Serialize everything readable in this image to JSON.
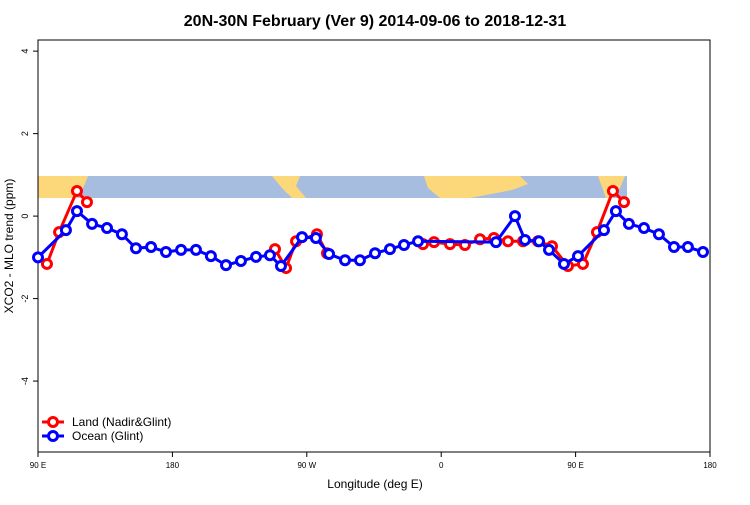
{
  "chart_data": {
    "type": "line",
    "title": "20N-30N February (Ver 9)   2014-09-06 to 2018-12-31",
    "x_label": "Longitude (deg E)",
    "y_label": "XCO2 - MLO trend (ppm)",
    "xlim": [
      90,
      540
    ],
    "ylim": [
      -5.72,
      4.27
    ],
    "xticks": [
      {
        "value": 90,
        "label": "90 E"
      },
      {
        "value": 180,
        "label": "180"
      },
      {
        "value": 270,
        "label": "90 W"
      },
      {
        "value": 360,
        "label": "0"
      },
      {
        "value": 450,
        "label": "90 E"
      },
      {
        "value": 540,
        "label": "180"
      }
    ],
    "yticks": [
      -4,
      -2,
      0,
      2,
      4
    ],
    "grid": false,
    "legend": "bottom-left",
    "series": [
      {
        "name": "Land (Nadir&Glint)",
        "color": "#ff0000",
        "x": [
          96.0,
          104.1,
          116.1,
          122.8,
          null,
          248.7,
          256.1,
          262.8,
          276.8,
          283.5,
          null,
          347.8,
          355.2,
          365.9,
          375.9,
          386.0,
          395.3,
          404.7,
          414.8,
          424.8,
          434.2,
          444.9,
          454.9,
          464.3,
          475.0,
          482.4
        ],
        "values": [
          -1.16,
          -0.39,
          0.61,
          0.34,
          null,
          -0.8,
          -1.26,
          -0.61,
          -0.44,
          -0.9,
          null,
          -0.68,
          -0.63,
          -0.68,
          -0.7,
          -0.56,
          -0.53,
          -0.61,
          -0.61,
          -0.61,
          -0.73,
          -1.21,
          -1.16,
          -0.39,
          0.61,
          0.34
        ]
      },
      {
        "name": "Ocean (Glint)",
        "color": "#0000ff",
        "x": [
          90.0,
          108.7,
          116.1,
          126.2,
          136.2,
          146.2,
          155.6,
          165.7,
          175.7,
          185.8,
          195.8,
          205.8,
          215.9,
          225.9,
          236.0,
          245.3,
          252.7,
          266.8,
          276.1,
          284.9,
          295.6,
          305.6,
          315.7,
          325.7,
          335.1,
          344.5,
          396.7,
          409.4,
          416.1,
          425.5,
          432.2,
          442.2,
          451.6,
          469.0,
          477.0,
          485.7,
          495.8,
          505.8,
          515.9,
          525.2,
          535.3
        ],
        "values": [
          -1.0,
          -0.34,
          0.12,
          -0.19,
          -0.29,
          -0.44,
          -0.78,
          -0.75,
          -0.87,
          -0.82,
          -0.82,
          -0.97,
          -1.19,
          -1.09,
          -0.99,
          -0.95,
          -1.21,
          -0.51,
          -0.53,
          -0.92,
          -1.07,
          -1.07,
          -0.9,
          -0.8,
          -0.7,
          -0.61,
          -0.63,
          0.0,
          -0.58,
          -0.61,
          -0.82,
          -1.16,
          -0.97,
          -0.34,
          0.12,
          -0.19,
          -0.29,
          -0.44,
          -0.75,
          -0.75,
          -0.87
        ]
      }
    ]
  }
}
